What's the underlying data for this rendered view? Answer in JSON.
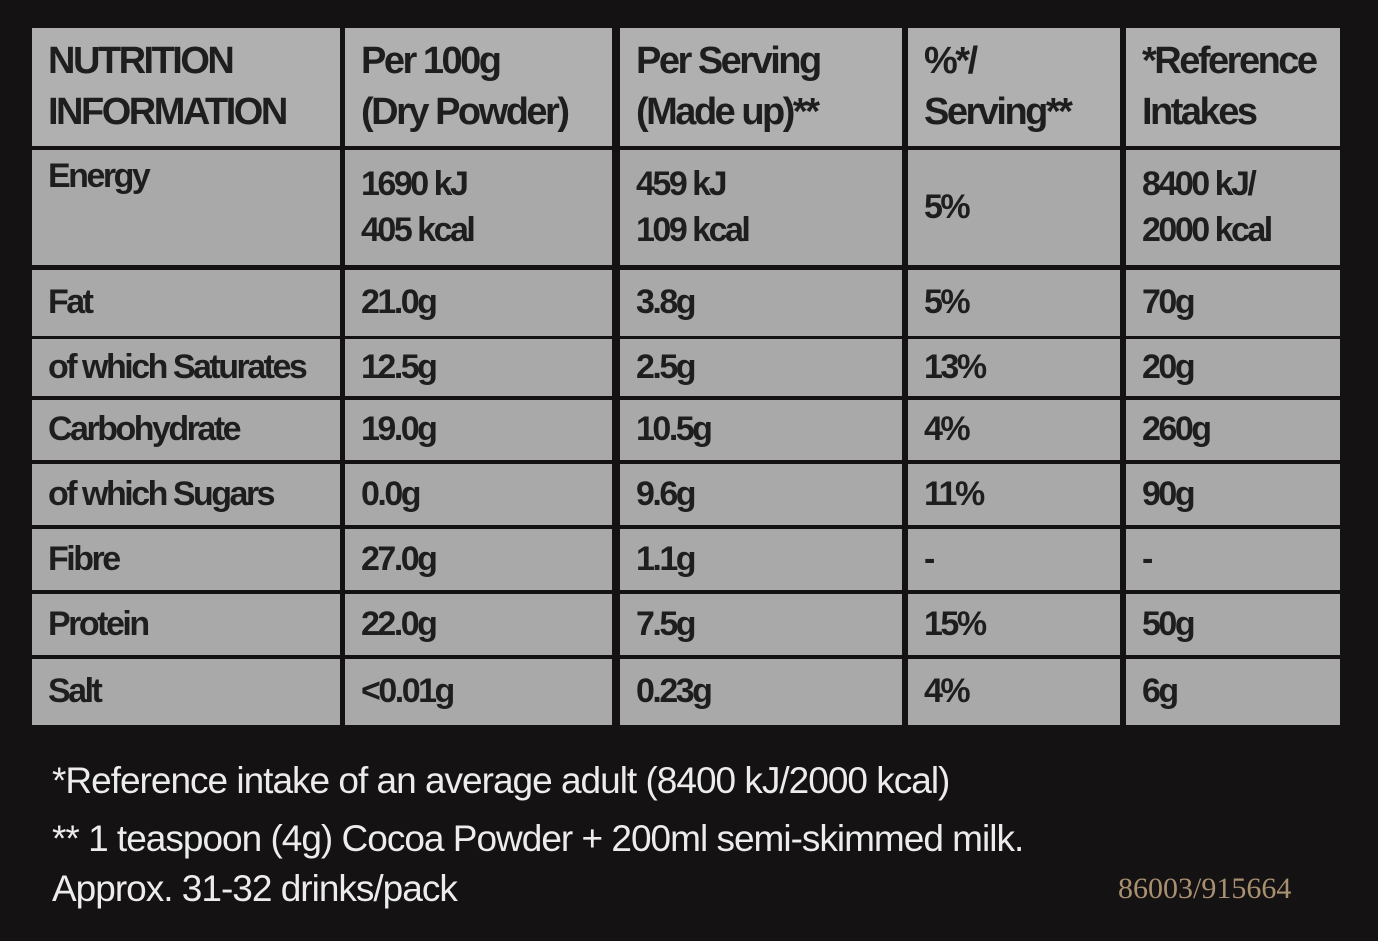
{
  "table": {
    "header": [
      [
        "NUTRITION",
        "INFORMATION"
      ],
      [
        "Per 100g",
        "(Dry Powder)"
      ],
      [
        "Per Serving",
        "(Made up)**"
      ],
      [
        "%*/",
        "Serving**"
      ],
      [
        "*Reference",
        "Intakes"
      ]
    ],
    "rows": [
      [
        [
          "Energy"
        ],
        [
          "1690 kJ",
          "405 kcal"
        ],
        [
          "459 kJ",
          "109 kcal"
        ],
        [
          "5%"
        ],
        [
          "8400 kJ/",
          "2000 kcal"
        ]
      ],
      [
        [
          "Fat"
        ],
        [
          "21.0g"
        ],
        [
          "3.8g"
        ],
        [
          "5%"
        ],
        [
          "70g"
        ]
      ],
      [
        [
          "of which Saturates"
        ],
        [
          "12.5g"
        ],
        [
          "2.5g"
        ],
        [
          "13%"
        ],
        [
          "20g"
        ]
      ],
      [
        [
          "Carbohydrate"
        ],
        [
          "19.0g"
        ],
        [
          "10.5g"
        ],
        [
          "4%"
        ],
        [
          "260g"
        ]
      ],
      [
        [
          "of which Sugars"
        ],
        [
          "0.0g"
        ],
        [
          "9.6g"
        ],
        [
          "11%"
        ],
        [
          "90g"
        ]
      ],
      [
        [
          "Fibre"
        ],
        [
          "27.0g"
        ],
        [
          "1.1g"
        ],
        [
          "-"
        ],
        [
          "-"
        ]
      ],
      [
        [
          "Protein"
        ],
        [
          "22.0g"
        ],
        [
          "7.5g"
        ],
        [
          "15%"
        ],
        [
          "50g"
        ]
      ],
      [
        [
          "Salt"
        ],
        [
          "<0.01g"
        ],
        [
          "0.23g"
        ],
        [
          "4%"
        ],
        [
          "6g"
        ]
      ]
    ]
  },
  "footnotes": [
    "*Reference intake of an average adult (8400 kJ/2000 kcal)",
    "** 1 teaspoon (4g) Cocoa Powder + 200ml semi-skimmed milk.",
    "Approx. 31-32 drinks/pack"
  ],
  "code": "86003/915664"
}
